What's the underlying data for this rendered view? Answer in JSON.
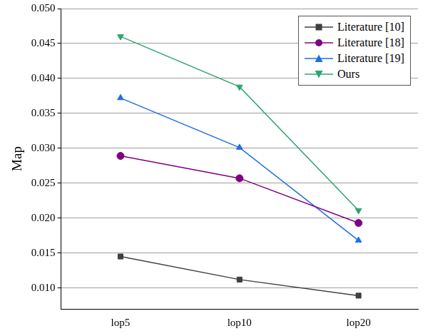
{
  "chart_data": {
    "type": "line",
    "y_label": "Map",
    "categories": [
      "lop5",
      "lop10",
      "lop20"
    ],
    "series": [
      {
        "name": "Literature [10]",
        "color": "#3f3f3f",
        "marker": "square",
        "values": [
          0.0145,
          0.0112,
          0.0089
        ]
      },
      {
        "name": "Literature [18]",
        "color": "#800080",
        "marker": "circle",
        "values": [
          0.0289,
          0.0257,
          0.0193
        ]
      },
      {
        "name": "Literature [19]",
        "color": "#1f6fe0",
        "marker": "triangle",
        "values": [
          0.0372,
          0.0301,
          0.0168
        ]
      },
      {
        "name": "Ours",
        "color": "#2ca66e",
        "marker": "triangle-down",
        "values": [
          0.046,
          0.0388,
          0.0211
        ]
      }
    ],
    "ylim": [
      0.007,
      0.05
    ],
    "yticks": [
      {
        "value": 0.01,
        "label": "0.010"
      },
      0.015,
      {
        "value": 0.02,
        "label": "0.020"
      },
      0.025,
      {
        "value": 0.03,
        "label": "0.030"
      },
      0.035,
      {
        "value": 0.04,
        "label": "0.040"
      },
      0.045,
      {
        "value": 0.05,
        "label": "0.050"
      }
    ],
    "grid": true,
    "legend": "upper right"
  }
}
